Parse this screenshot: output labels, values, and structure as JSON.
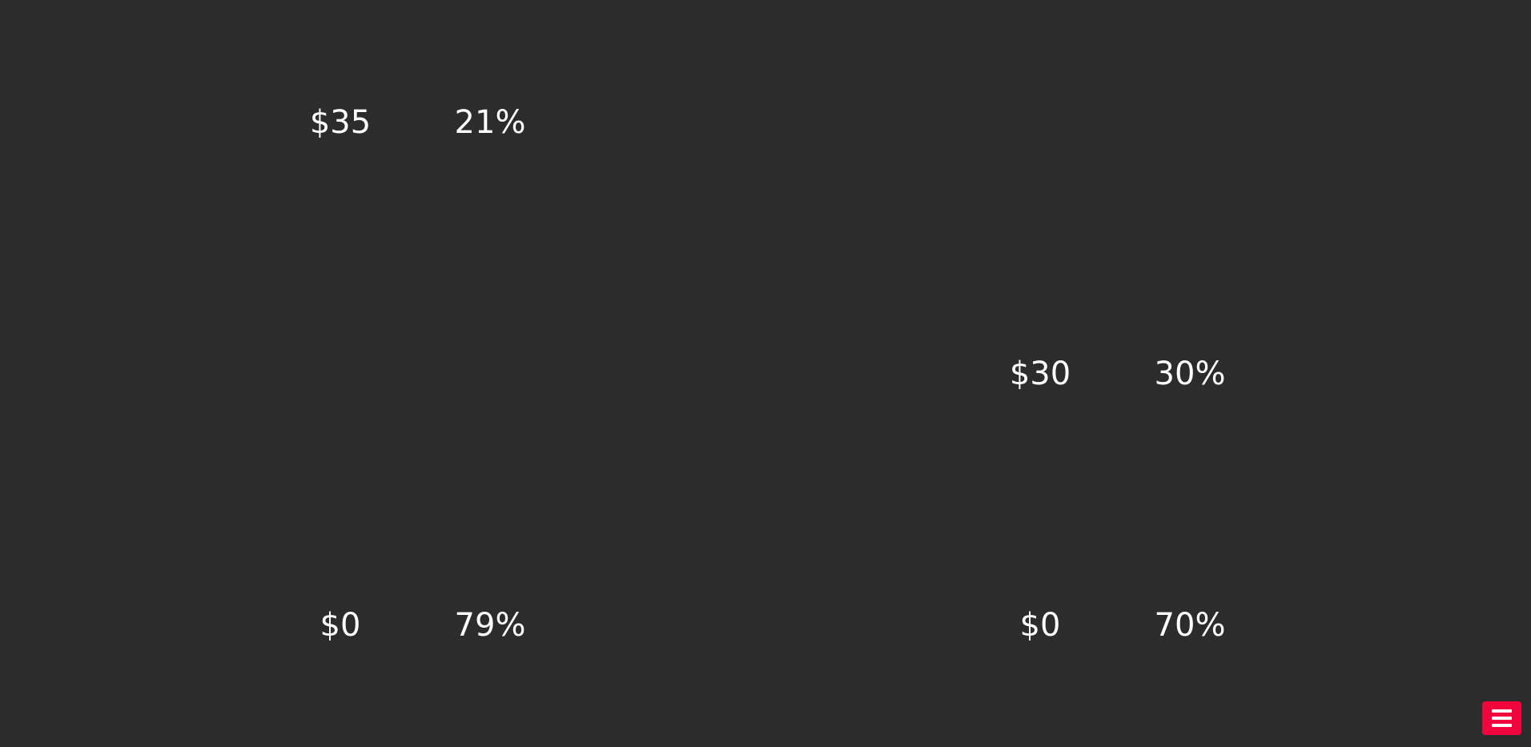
{
  "left_group": {
    "top_price": "$35",
    "top_percent": "21%",
    "bottom_price": "$0",
    "bottom_percent": "79%"
  },
  "right_group": {
    "top_price": "$30",
    "top_percent": "30%",
    "bottom_price": "$0",
    "bottom_percent": "70%"
  },
  "menu_button": {
    "icon": "hamburger-menu-icon",
    "color": "#f0063c"
  },
  "colors": {
    "background": "#2c2c2c",
    "text": "#ffffff"
  }
}
